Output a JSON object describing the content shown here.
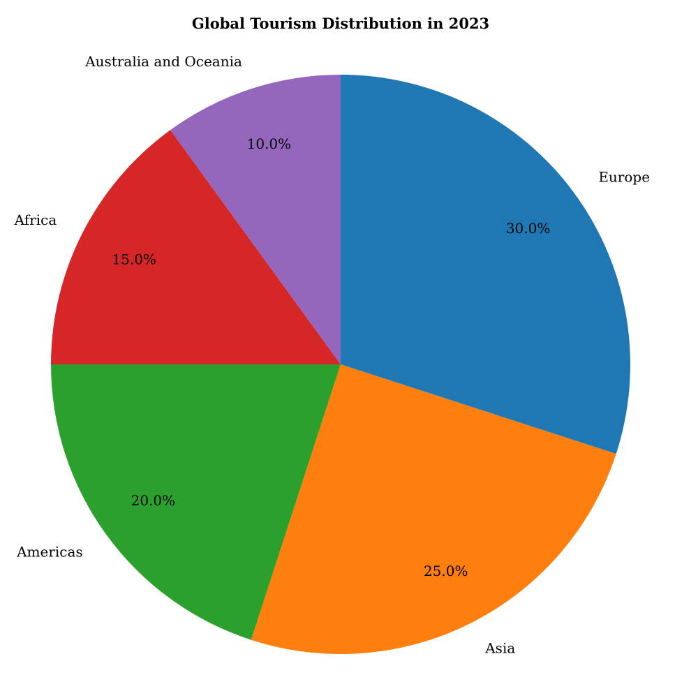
{
  "chart_data": {
    "type": "pie",
    "title": "Global Tourism Distribution in 2023",
    "categories": [
      "Europe",
      "Asia",
      "Americas",
      "Africa",
      "Australia and Oceania"
    ],
    "values": [
      30.0,
      25.0,
      20.0,
      15.0,
      10.0
    ],
    "percent_labels": [
      "30.0%",
      "25.0%",
      "20.0%",
      "15.0%",
      "10.0%"
    ],
    "colors": [
      "#1f77b4",
      "#ff7f0e",
      "#2ca02c",
      "#d62728",
      "#9467bd"
    ],
    "start_angle_deg": 90,
    "direction": "clockwise"
  }
}
